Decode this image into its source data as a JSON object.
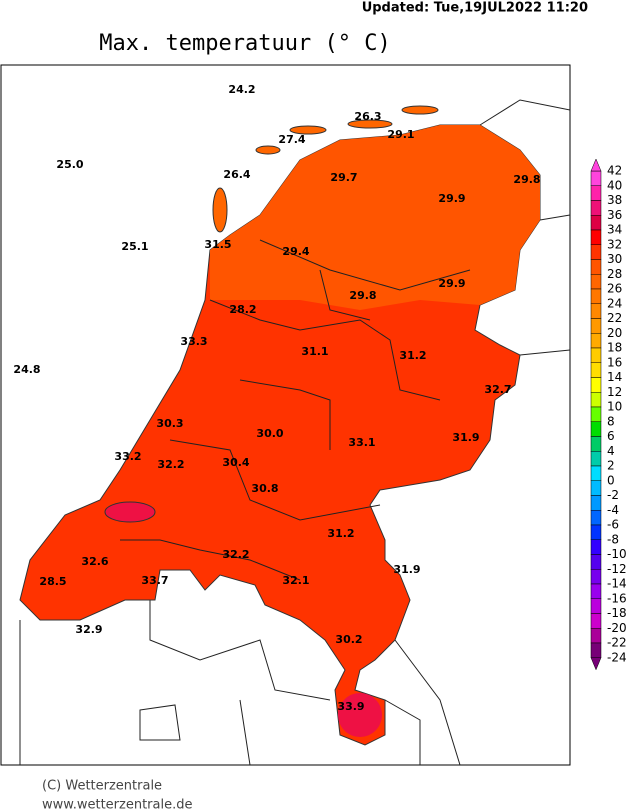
{
  "header": {
    "updated": "Updated: Tue,19JUL2022 11:20",
    "title": "Max. temperatuur (° C)"
  },
  "stations": [
    "24.2",
    "26.3",
    "29.1",
    "27.4",
    "25.0",
    "26.4",
    "29.7",
    "29.8",
    "29.9",
    "25.1",
    "31.5",
    "29.4",
    "29.9",
    "29.8",
    "28.2",
    "33.3",
    "31.1",
    "31.2",
    "24.8",
    "32.7",
    "30.3",
    "30.0",
    "33.1",
    "31.9",
    "33.2",
    "32.2",
    "30.4",
    "30.8",
    "31.2",
    "32.6",
    "32.2",
    "31.9",
    "28.5",
    "33.7",
    "32.1",
    "32.9",
    "30.2",
    "33.9"
  ],
  "legend": {
    "labels": [
      "42",
      "40",
      "38",
      "36",
      "34",
      "32",
      "30",
      "28",
      "26",
      "24",
      "22",
      "20",
      "18",
      "16",
      "14",
      "12",
      "10",
      "8",
      "6",
      "4",
      "2",
      "0",
      "-2",
      "-4",
      "-6",
      "-8",
      "-10",
      "-12",
      "-14",
      "-16",
      "-18",
      "-20",
      "-22",
      "-24"
    ],
    "colors": [
      "#ff44dd",
      "#ff22aa",
      "#ee1177",
      "#dd0044",
      "#ff0000",
      "#ff3300",
      "#ff5500",
      "#ff6600",
      "#ff7700",
      "#ff8800",
      "#ff9900",
      "#ffaa00",
      "#ffcc00",
      "#ffdd00",
      "#ffff00",
      "#ccff00",
      "#66ff00",
      "#00dd00",
      "#00cc66",
      "#00ccaa",
      "#00ddff",
      "#00bbff",
      "#0099ff",
      "#0066ff",
      "#0033ff",
      "#3300ff",
      "#5500ee",
      "#7700ee",
      "#9900ee",
      "#bb00dd",
      "#cc00cc",
      "#aa0099",
      "#770077"
    ]
  },
  "footer": {
    "copyright": "(C) Wetterzentrale",
    "url": "www.wetterzentrale.de"
  }
}
